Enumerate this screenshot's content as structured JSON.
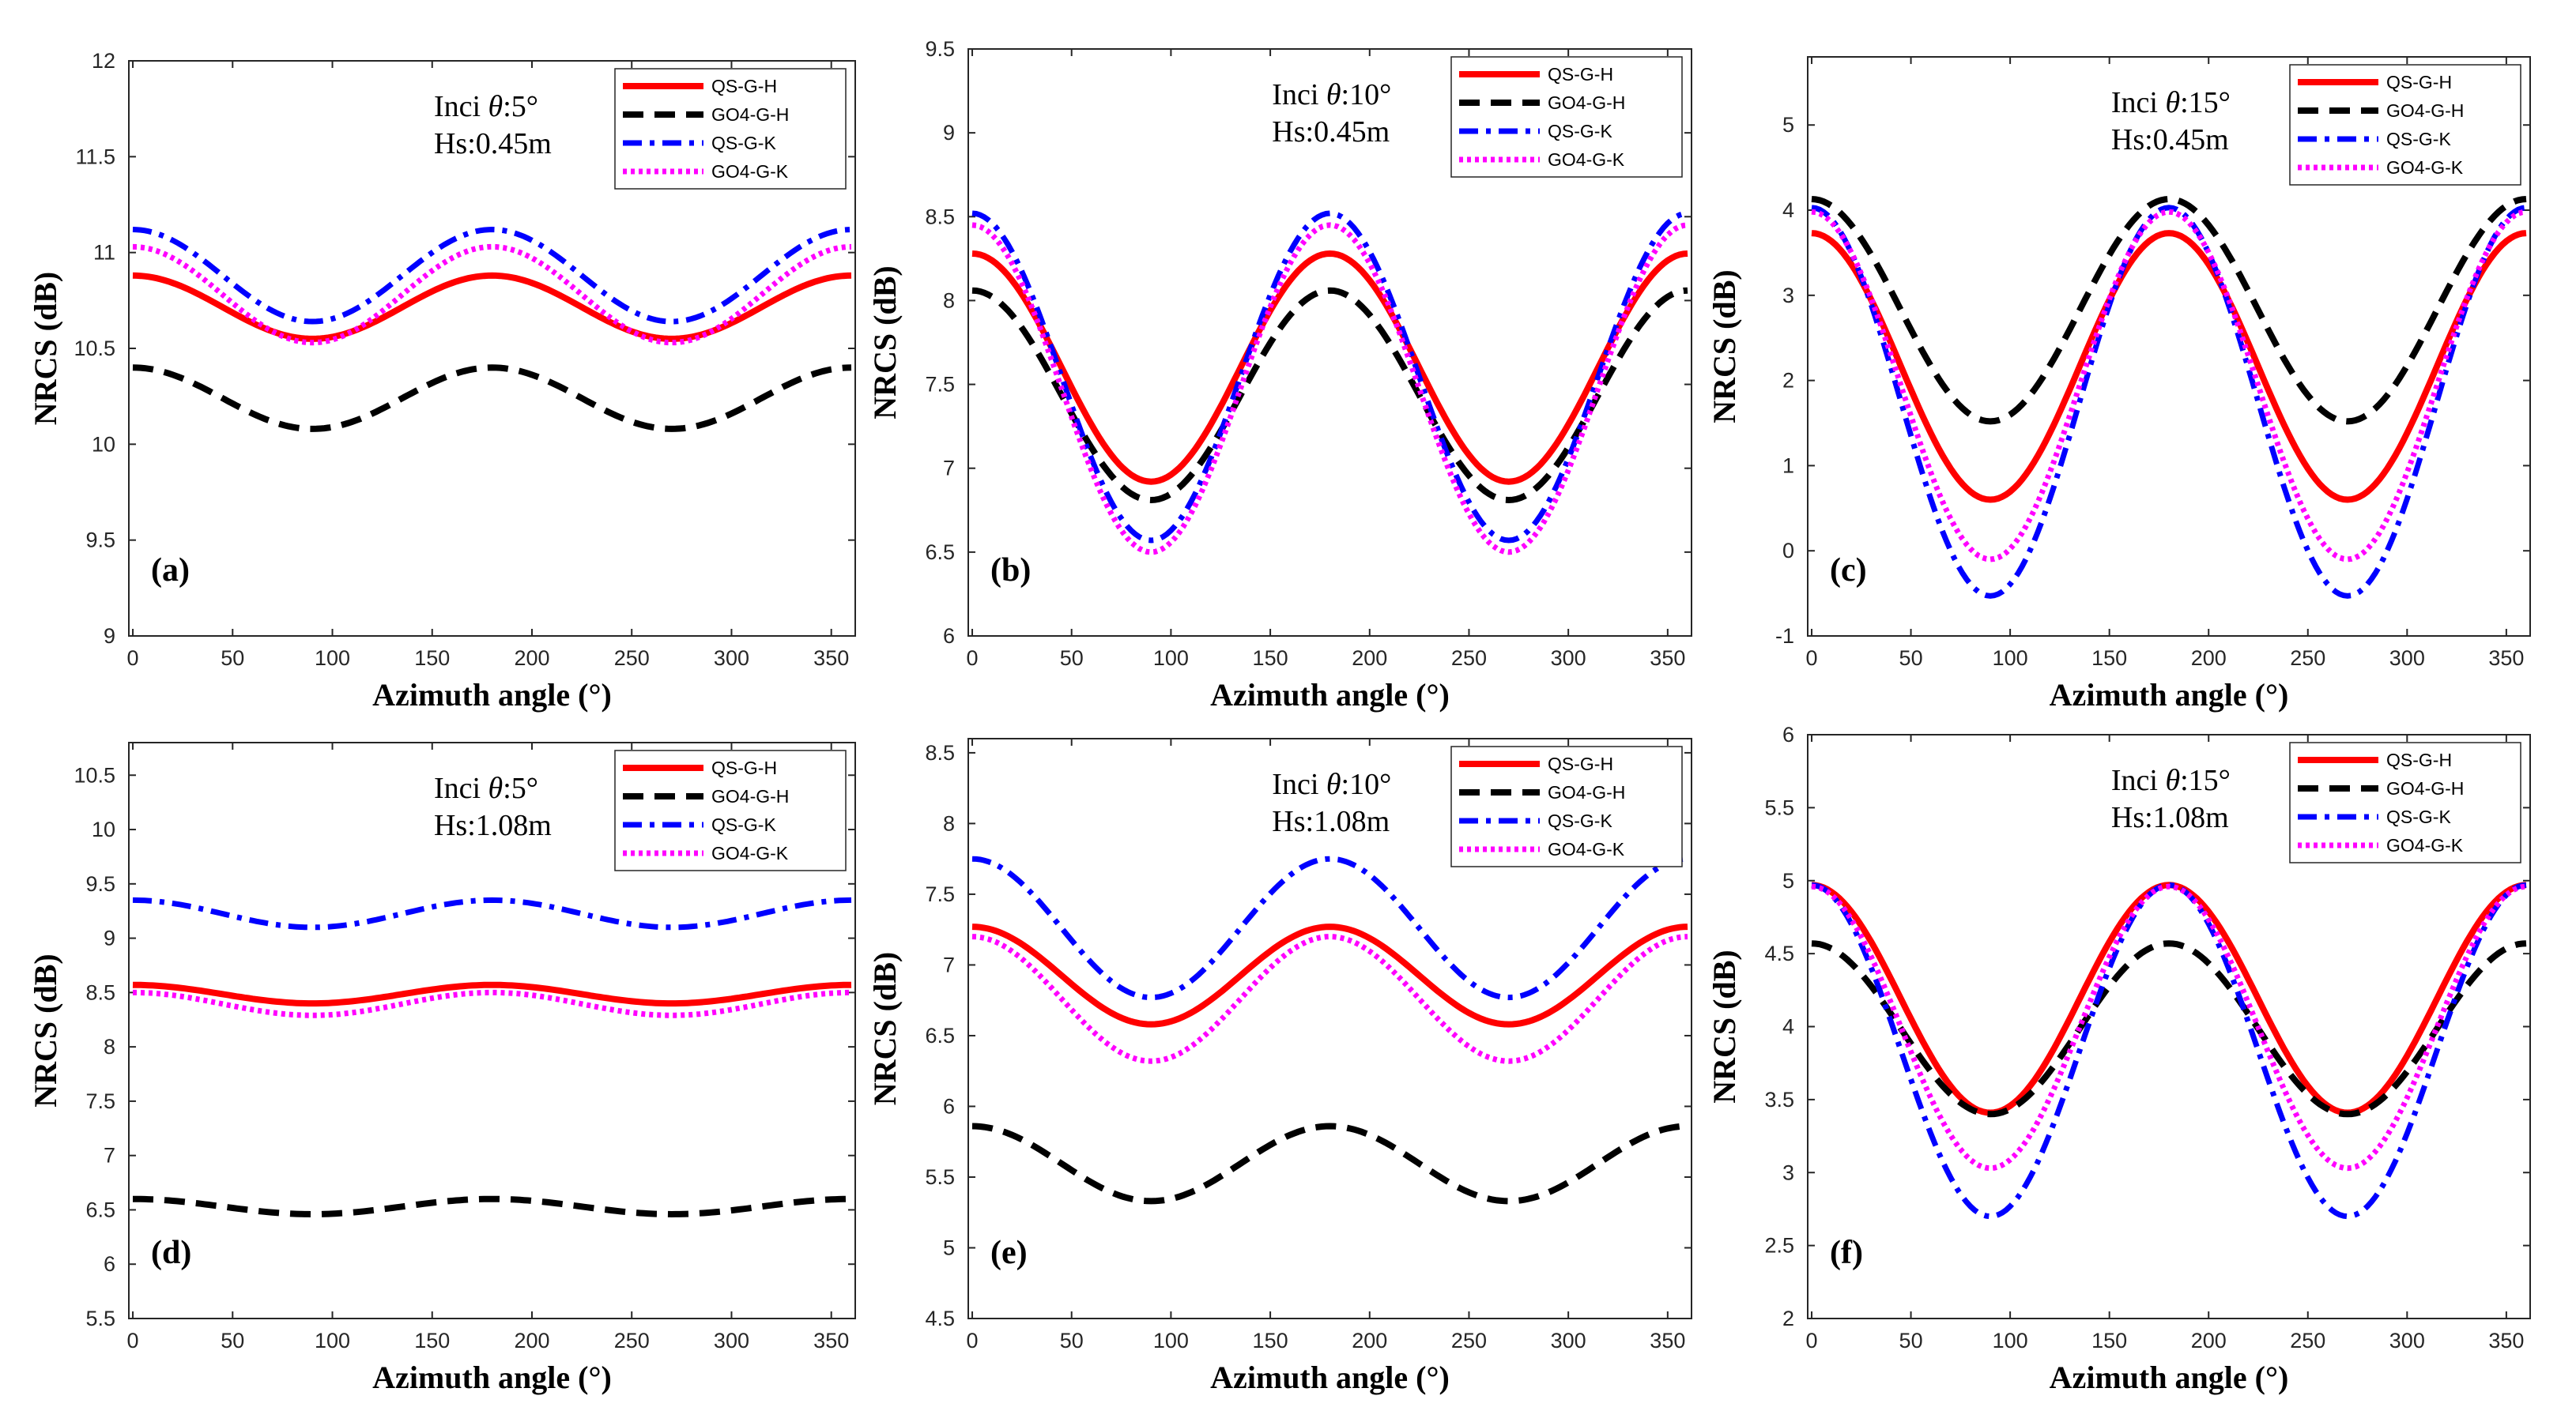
{
  "figure": {
    "description_free": true,
    "colors": {
      "QS-G-H": "#ff0000",
      "GO4-G-H": "#000000",
      "QS-G-K": "#0000ff",
      "GO4-G-K": "#ff00ff"
    },
    "line_styles": {
      "QS-G-H": "solid",
      "GO4-G-H": "dashed",
      "QS-G-K": "dashdot",
      "GO4-G-K": "dotted"
    }
  },
  "chart_data": [
    {
      "id": "a",
      "type": "line",
      "panel_label": "(a)",
      "annotation_line1_prefix": "Inci ",
      "annotation_theta": "θ",
      "annotation_line1_value": ":5°",
      "annotation_line2": "Hs:0.45m",
      "xlabel": "Azimuth angle (°)",
      "ylabel": "NRCS (dB)",
      "xlim": [
        -2,
        362
      ],
      "ylim": [
        9,
        12
      ],
      "xticks": [
        0,
        50,
        100,
        150,
        200,
        250,
        300,
        350
      ],
      "yticks": [
        9,
        9.5,
        10,
        10.5,
        11,
        11.5,
        12
      ],
      "ytick_labels": [
        "9",
        "9.5",
        "10",
        "10.5",
        "11",
        "11.5",
        "12"
      ],
      "series": [
        {
          "name": "QS-G-H",
          "x": [
            0,
            90,
            180,
            270,
            360
          ],
          "values": [
            10.88,
            10.55,
            10.88,
            10.55,
            10.88
          ]
        },
        {
          "name": "GO4-G-H",
          "x": [
            0,
            90,
            180,
            270,
            360
          ],
          "values": [
            10.4,
            10.08,
            10.4,
            10.08,
            10.4
          ]
        },
        {
          "name": "QS-G-K",
          "x": [
            0,
            90,
            180,
            270,
            360
          ],
          "values": [
            11.12,
            10.64,
            11.12,
            10.64,
            11.12
          ]
        },
        {
          "name": "GO4-G-K",
          "x": [
            0,
            90,
            180,
            270,
            360
          ],
          "values": [
            11.03,
            10.53,
            11.03,
            10.53,
            11.03
          ]
        }
      ],
      "legend": [
        "QS-G-H",
        "GO4-G-H",
        "QS-G-K",
        "GO4-G-K"
      ],
      "legend_position": "top-right"
    },
    {
      "id": "b",
      "type": "line",
      "panel_label": "(b)",
      "annotation_line1_prefix": "Inci ",
      "annotation_theta": "θ",
      "annotation_line1_value": ":10°",
      "annotation_line2": "Hs:0.45m",
      "xlabel": "Azimuth angle (°)",
      "ylabel": "NRCS (dB)",
      "xlim": [
        -2,
        362
      ],
      "ylim": [
        6,
        9.5
      ],
      "xticks": [
        0,
        50,
        100,
        150,
        200,
        250,
        300,
        350
      ],
      "yticks": [
        6,
        6.5,
        7,
        7.5,
        8,
        8.5,
        9,
        9.5
      ],
      "ytick_labels": [
        "6",
        "6.5",
        "7",
        "7.5",
        "8",
        "8.5",
        "9",
        "9.5"
      ],
      "series": [
        {
          "name": "QS-G-H",
          "x": [
            0,
            90,
            180,
            270,
            360
          ],
          "values": [
            8.28,
            6.92,
            8.28,
            6.92,
            8.28
          ]
        },
        {
          "name": "GO4-G-H",
          "x": [
            0,
            90,
            180,
            270,
            360
          ],
          "values": [
            8.06,
            6.81,
            8.06,
            6.81,
            8.06
          ]
        },
        {
          "name": "QS-G-K",
          "x": [
            0,
            90,
            180,
            270,
            360
          ],
          "values": [
            8.52,
            6.57,
            8.52,
            6.57,
            8.52
          ]
        },
        {
          "name": "GO4-G-K",
          "x": [
            0,
            90,
            180,
            270,
            360
          ],
          "values": [
            8.45,
            6.5,
            8.45,
            6.5,
            8.45
          ]
        }
      ],
      "legend": [
        "QS-G-H",
        "GO4-G-H",
        "QS-G-K",
        "GO4-G-K"
      ],
      "legend_position": "top-right"
    },
    {
      "id": "c",
      "type": "line",
      "panel_label": "(c)",
      "annotation_line1_prefix": "Inci ",
      "annotation_theta": "θ",
      "annotation_line1_value": ":15°",
      "annotation_line2": "Hs:0.45m",
      "xlabel": "Azimuth angle (°)",
      "ylabel": "NRCS (dB)",
      "xlim": [
        -2,
        362
      ],
      "ylim": [
        -1,
        5.8
      ],
      "xticks": [
        0,
        50,
        100,
        150,
        200,
        250,
        300,
        350
      ],
      "yticks": [
        -1,
        0,
        1,
        2,
        3,
        4,
        5
      ],
      "ytick_labels": [
        "-1",
        "0",
        "1",
        "2",
        "3",
        "4",
        "5"
      ],
      "series": [
        {
          "name": "QS-G-H",
          "x": [
            0,
            90,
            180,
            270,
            360
          ],
          "values": [
            3.73,
            0.6,
            3.73,
            0.6,
            3.73
          ]
        },
        {
          "name": "GO4-G-H",
          "x": [
            0,
            90,
            180,
            270,
            360
          ],
          "values": [
            4.13,
            1.52,
            4.13,
            1.52,
            4.13
          ]
        },
        {
          "name": "QS-G-K",
          "x": [
            0,
            90,
            180,
            270,
            360
          ],
          "values": [
            4.03,
            -0.53,
            4.03,
            -0.53,
            4.03
          ]
        },
        {
          "name": "GO4-G-K",
          "x": [
            0,
            90,
            180,
            270,
            360
          ],
          "values": [
            3.98,
            -0.1,
            3.98,
            -0.1,
            3.98
          ]
        }
      ],
      "legend": [
        "QS-G-H",
        "GO4-G-H",
        "QS-G-K",
        "GO4-G-K"
      ],
      "legend_position": "top-right"
    },
    {
      "id": "d",
      "type": "line",
      "panel_label": "(d)",
      "annotation_line1_prefix": "Inci ",
      "annotation_theta": "θ",
      "annotation_line1_value": ":5°",
      "annotation_line2": "Hs:1.08m",
      "xlabel": "Azimuth angle (°)",
      "ylabel": "NRCS (dB)",
      "xlim": [
        -2,
        362
      ],
      "ylim": [
        5.5,
        10.8
      ],
      "xticks": [
        0,
        50,
        100,
        150,
        200,
        250,
        300,
        350
      ],
      "yticks": [
        5.5,
        6,
        6.5,
        7,
        7.5,
        8,
        8.5,
        9,
        9.5,
        10,
        10.5
      ],
      "ytick_labels": [
        "5.5",
        "6",
        "6.5",
        "7",
        "7.5",
        "8",
        "8.5",
        "9",
        "9.5",
        "10",
        "10.5"
      ],
      "series": [
        {
          "name": "QS-G-H",
          "x": [
            0,
            90,
            180,
            270,
            360
          ],
          "values": [
            8.57,
            8.4,
            8.57,
            8.4,
            8.57
          ]
        },
        {
          "name": "GO4-G-H",
          "x": [
            0,
            90,
            180,
            270,
            360
          ],
          "values": [
            6.6,
            6.46,
            6.6,
            6.46,
            6.6
          ]
        },
        {
          "name": "QS-G-K",
          "x": [
            0,
            90,
            180,
            270,
            360
          ],
          "values": [
            9.35,
            9.1,
            9.35,
            9.1,
            9.35
          ]
        },
        {
          "name": "GO4-G-K",
          "x": [
            0,
            90,
            180,
            270,
            360
          ],
          "values": [
            8.5,
            8.29,
            8.5,
            8.29,
            8.5
          ]
        }
      ],
      "legend": [
        "QS-G-H",
        "GO4-G-H",
        "QS-G-K",
        "GO4-G-K"
      ],
      "legend_position": "top-right"
    },
    {
      "id": "e",
      "type": "line",
      "panel_label": "(e)",
      "annotation_line1_prefix": "Inci ",
      "annotation_theta": "θ",
      "annotation_line1_value": ":10°",
      "annotation_line2": "Hs:1.08m",
      "xlabel": "Azimuth angle (°)",
      "ylabel": "NRCS (dB)",
      "xlim": [
        -2,
        362
      ],
      "ylim": [
        4.5,
        8.6
      ],
      "xticks": [
        0,
        50,
        100,
        150,
        200,
        250,
        300,
        350
      ],
      "yticks": [
        4.5,
        5,
        5.5,
        6,
        6.5,
        7,
        7.5,
        8,
        8.5
      ],
      "ytick_labels": [
        "4.5",
        "5",
        "5.5",
        "6",
        "6.5",
        "7",
        "7.5",
        "8",
        "8.5"
      ],
      "series": [
        {
          "name": "QS-G-H",
          "x": [
            0,
            90,
            180,
            270,
            360
          ],
          "values": [
            7.27,
            6.58,
            7.27,
            6.58,
            7.27
          ]
        },
        {
          "name": "GO4-G-H",
          "x": [
            0,
            90,
            180,
            270,
            360
          ],
          "values": [
            5.86,
            5.33,
            5.86,
            5.33,
            5.86
          ]
        },
        {
          "name": "QS-G-K",
          "x": [
            0,
            90,
            180,
            270,
            360
          ],
          "values": [
            7.75,
            6.77,
            7.75,
            6.77,
            7.75
          ]
        },
        {
          "name": "GO4-G-K",
          "x": [
            0,
            90,
            180,
            270,
            360
          ],
          "values": [
            7.2,
            6.32,
            7.2,
            6.32,
            7.2
          ]
        }
      ],
      "legend": [
        "QS-G-H",
        "GO4-G-H",
        "QS-G-K",
        "GO4-G-K"
      ],
      "legend_position": "top-right"
    },
    {
      "id": "f",
      "type": "line",
      "panel_label": "(f)",
      "annotation_line1_prefix": "Inci ",
      "annotation_theta": "θ",
      "annotation_line1_value": ":15°",
      "annotation_line2": "Hs:1.08m",
      "xlabel": "Azimuth angle (°)",
      "ylabel": "NRCS (dB)",
      "xlim": [
        -2,
        362
      ],
      "ylim": [
        2,
        6
      ],
      "xticks": [
        0,
        50,
        100,
        150,
        200,
        250,
        300,
        350
      ],
      "yticks": [
        2,
        2.5,
        3,
        3.5,
        4,
        4.5,
        5,
        5.5,
        6
      ],
      "ytick_labels": [
        "2",
        "2.5",
        "3",
        "3.5",
        "4",
        "4.5",
        "5",
        "5.5",
        "6"
      ],
      "series": [
        {
          "name": "QS-G-H",
          "x": [
            0,
            90,
            180,
            270,
            360
          ],
          "values": [
            4.97,
            3.41,
            4.97,
            3.41,
            4.97
          ]
        },
        {
          "name": "GO4-G-H",
          "x": [
            0,
            90,
            180,
            270,
            360
          ],
          "values": [
            4.57,
            3.4,
            4.57,
            3.4,
            4.57
          ]
        },
        {
          "name": "QS-G-K",
          "x": [
            0,
            90,
            180,
            270,
            360
          ],
          "values": [
            4.97,
            2.7,
            4.97,
            2.7,
            4.97
          ]
        },
        {
          "name": "GO4-G-K",
          "x": [
            0,
            90,
            180,
            270,
            360
          ],
          "values": [
            4.96,
            3.03,
            4.96,
            3.03,
            4.96
          ]
        }
      ],
      "legend": [
        "QS-G-H",
        "GO4-G-H",
        "QS-G-K",
        "GO4-G-K"
      ],
      "legend_position": "top-right"
    }
  ]
}
